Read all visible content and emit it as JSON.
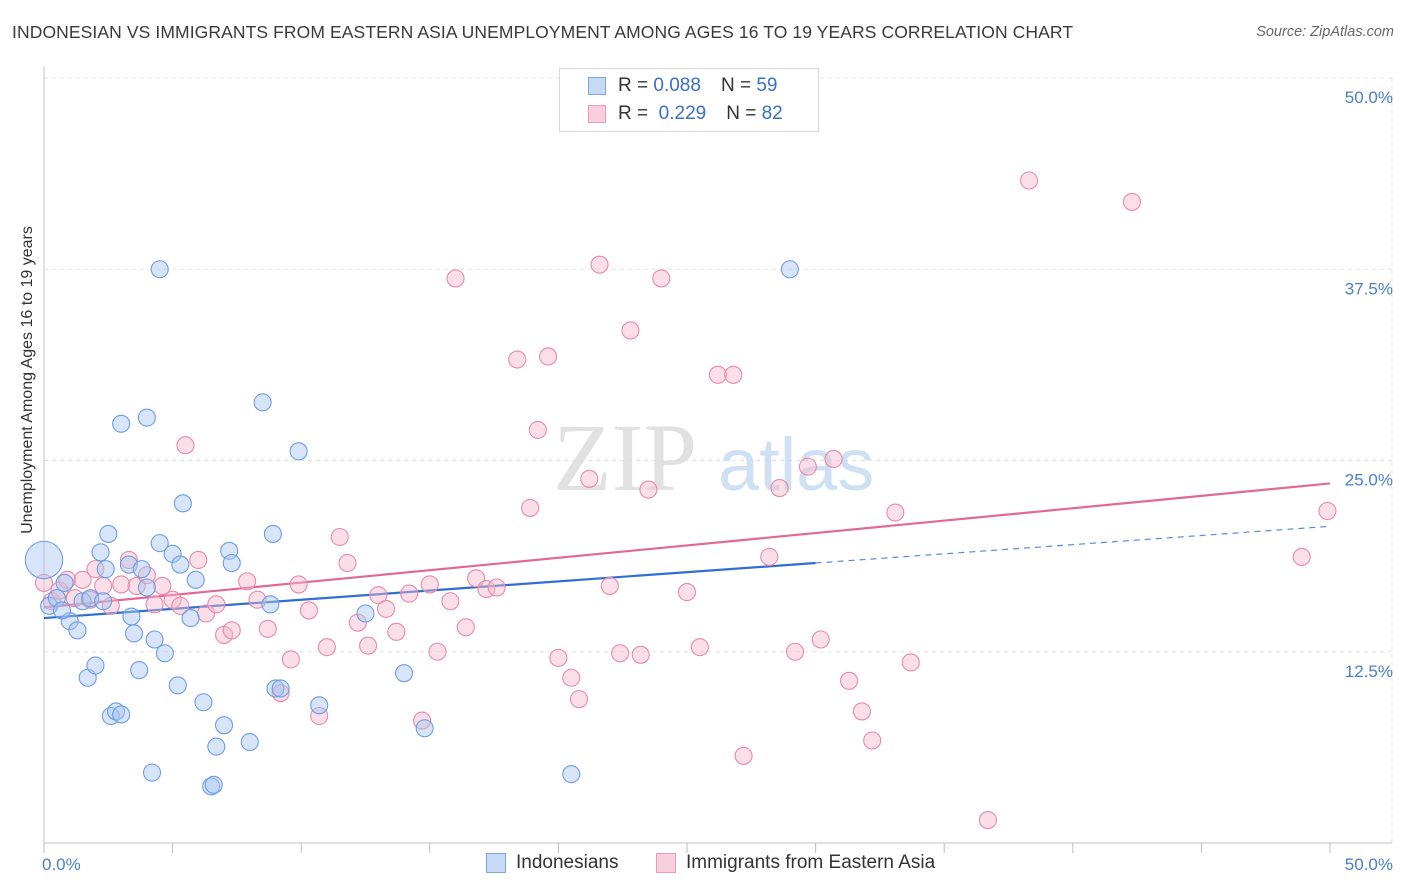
{
  "title": "INDONESIAN VS IMMIGRANTS FROM EASTERN ASIA UNEMPLOYMENT AMONG AGES 16 TO 19 YEARS CORRELATION CHART",
  "source": "Source: ZipAtlas.com",
  "watermark": {
    "zip": "ZIP",
    "atlas": "atlas"
  },
  "legend": {
    "rows": [
      {
        "r_label": "R =",
        "r_value": "0.088",
        "n_label": "N =",
        "n_value": "59",
        "color": "#a8c6f0"
      },
      {
        "r_label": "R =",
        "r_value": "0.229",
        "n_label": "N =",
        "n_value": "82",
        "color": "#f4b8cc"
      }
    ]
  },
  "bottom_legend": [
    {
      "label": "Indonesians",
      "color": "#a8c6f0"
    },
    {
      "label": "Immigrants from Eastern Asia",
      "color": "#f4b8cc"
    }
  ],
  "chart_data": {
    "type": "scatter",
    "title": "INDONESIAN VS IMMIGRANTS FROM EASTERN ASIA UNEMPLOYMENT AMONG AGES 16 TO 19 YEARS CORRELATION CHART",
    "xlabel": "",
    "ylabel": "Unemployment Among Ages 16 to 19 years",
    "xlim": [
      0,
      50
    ],
    "ylim": [
      0,
      50
    ],
    "x_tick_labels": [
      {
        "value": 0,
        "label": "0.0%"
      },
      {
        "value": 50,
        "label": "50.0%"
      }
    ],
    "y_tick_labels": [
      {
        "value": 12.5,
        "label": "12.5%"
      },
      {
        "value": 25,
        "label": "25.0%"
      },
      {
        "value": 37.5,
        "label": "37.5%"
      },
      {
        "value": 50,
        "label": "50.0%"
      }
    ],
    "grid": true,
    "legend_position": "top-center",
    "series": [
      {
        "name": "Indonesians",
        "color": "#6b9ee6",
        "fill": "#a8c6f0",
        "trend": {
          "x": [
            0,
            30
          ],
          "y": [
            14.7,
            18.3
          ],
          "dashed_to": [
            50,
            20.7
          ],
          "color": "#2f6fd0"
        },
        "points": [
          [
            0,
            18.5
          ],
          [
            0.2,
            15.5
          ],
          [
            0.5,
            16.0
          ],
          [
            0.8,
            17.0
          ],
          [
            1.0,
            14.5
          ],
          [
            1.3,
            13.9
          ],
          [
            1.5,
            15.8
          ],
          [
            0.7,
            15.2
          ],
          [
            1.7,
            10.8
          ],
          [
            1.8,
            16.0
          ],
          [
            2.0,
            11.6
          ],
          [
            2.2,
            19.0
          ],
          [
            2.3,
            15.8
          ],
          [
            2.4,
            17.9
          ],
          [
            2.5,
            20.2
          ],
          [
            2.6,
            8.3
          ],
          [
            2.8,
            8.6
          ],
          [
            3.0,
            8.4
          ],
          [
            3.0,
            27.4
          ],
          [
            3.3,
            18.2
          ],
          [
            3.4,
            14.8
          ],
          [
            3.5,
            13.7
          ],
          [
            3.7,
            11.3
          ],
          [
            3.8,
            17.9
          ],
          [
            4.0,
            27.8
          ],
          [
            4.0,
            16.7
          ],
          [
            4.2,
            4.6
          ],
          [
            4.3,
            13.3
          ],
          [
            4.5,
            19.6
          ],
          [
            4.5,
            37.5
          ],
          [
            4.7,
            12.4
          ],
          [
            5.0,
            18.9
          ],
          [
            5.2,
            10.3
          ],
          [
            5.3,
            18.2
          ],
          [
            5.4,
            22.2
          ],
          [
            5.7,
            14.7
          ],
          [
            5.9,
            17.2
          ],
          [
            6.2,
            9.2
          ],
          [
            6.5,
            3.7
          ],
          [
            6.6,
            3.8
          ],
          [
            6.7,
            6.3
          ],
          [
            7.0,
            7.7
          ],
          [
            7.2,
            19.1
          ],
          [
            7.3,
            18.3
          ],
          [
            8.0,
            6.6
          ],
          [
            8.5,
            28.8
          ],
          [
            8.8,
            15.6
          ],
          [
            8.9,
            20.2
          ],
          [
            9.0,
            10.1
          ],
          [
            9.2,
            10.1
          ],
          [
            9.9,
            25.6
          ],
          [
            10.7,
            9.0
          ],
          [
            12.5,
            15.0
          ],
          [
            14.0,
            11.1
          ],
          [
            14.8,
            7.5
          ],
          [
            20.5,
            4.5
          ],
          [
            29.0,
            37.5
          ]
        ],
        "sizes": {
          "0,18.5": 2.2
        }
      },
      {
        "name": "Immigrants from Eastern Asia",
        "color": "#e98aa8",
        "fill": "#f4b8cc",
        "trend": {
          "x": [
            0,
            50
          ],
          "y": [
            15.4,
            23.5
          ],
          "color": "#e06a95"
        },
        "points": [
          [
            0,
            17.0
          ],
          [
            0.3,
            15.8
          ],
          [
            0.6,
            16.5
          ],
          [
            0.9,
            17.2
          ],
          [
            1.2,
            16.0
          ],
          [
            1.5,
            17.2
          ],
          [
            1.8,
            15.9
          ],
          [
            2.0,
            17.9
          ],
          [
            2.3,
            16.8
          ],
          [
            2.6,
            15.5
          ],
          [
            3.0,
            16.9
          ],
          [
            3.3,
            18.5
          ],
          [
            3.6,
            16.8
          ],
          [
            4.0,
            17.5
          ],
          [
            4.3,
            15.6
          ],
          [
            4.6,
            16.8
          ],
          [
            5.0,
            15.9
          ],
          [
            5.3,
            15.5
          ],
          [
            5.5,
            26.0
          ],
          [
            6.0,
            18.5
          ],
          [
            6.3,
            15.0
          ],
          [
            6.7,
            15.6
          ],
          [
            7.0,
            13.6
          ],
          [
            7.3,
            13.9
          ],
          [
            7.9,
            17.1
          ],
          [
            8.3,
            15.9
          ],
          [
            8.7,
            14.0
          ],
          [
            9.2,
            9.8
          ],
          [
            9.6,
            12.0
          ],
          [
            9.9,
            16.9
          ],
          [
            10.3,
            15.2
          ],
          [
            10.7,
            8.3
          ],
          [
            11.0,
            12.8
          ],
          [
            11.5,
            20.0
          ],
          [
            11.8,
            18.3
          ],
          [
            12.2,
            14.4
          ],
          [
            12.6,
            12.9
          ],
          [
            13.0,
            16.2
          ],
          [
            13.3,
            15.3
          ],
          [
            13.7,
            13.8
          ],
          [
            14.2,
            16.3
          ],
          [
            14.7,
            8.0
          ],
          [
            15.0,
            16.9
          ],
          [
            15.3,
            12.5
          ],
          [
            15.8,
            15.8
          ],
          [
            16.0,
            36.9
          ],
          [
            16.4,
            14.1
          ],
          [
            16.8,
            17.3
          ],
          [
            17.2,
            16.6
          ],
          [
            17.6,
            16.7
          ],
          [
            18.4,
            31.6
          ],
          [
            18.9,
            21.9
          ],
          [
            19.2,
            27.0
          ],
          [
            19.6,
            31.8
          ],
          [
            20.0,
            12.1
          ],
          [
            20.5,
            10.8
          ],
          [
            20.8,
            9.4
          ],
          [
            21.2,
            23.8
          ],
          [
            21.6,
            37.8
          ],
          [
            22.0,
            16.8
          ],
          [
            22.4,
            12.4
          ],
          [
            22.8,
            33.5
          ],
          [
            23.2,
            12.3
          ],
          [
            23.5,
            23.1
          ],
          [
            24.0,
            36.9
          ],
          [
            25.0,
            16.4
          ],
          [
            25.5,
            12.8
          ],
          [
            26.2,
            30.6
          ],
          [
            26.8,
            30.6
          ],
          [
            27.2,
            5.7
          ],
          [
            28.2,
            18.7
          ],
          [
            28.6,
            23.2
          ],
          [
            29.2,
            12.5
          ],
          [
            29.7,
            24.6
          ],
          [
            30.2,
            13.3
          ],
          [
            30.7,
            25.1
          ],
          [
            31.3,
            10.6
          ],
          [
            31.8,
            8.6
          ],
          [
            32.2,
            6.7
          ],
          [
            33.1,
            21.6
          ],
          [
            33.7,
            11.8
          ],
          [
            36.7,
            1.5
          ],
          [
            38.3,
            43.3
          ],
          [
            42.3,
            41.9
          ],
          [
            48.9,
            18.7
          ],
          [
            49.9,
            21.7
          ]
        ]
      }
    ]
  }
}
